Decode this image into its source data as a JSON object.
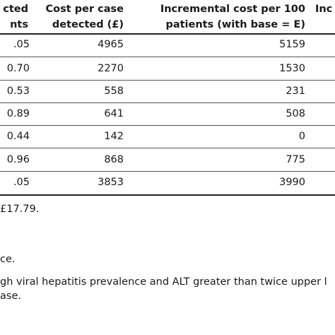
{
  "table": {
    "headers": {
      "col1_line1": "cted",
      "col1_line2": "nts",
      "col2_line1": "Cost per case",
      "col2_line2": "detected (£)",
      "col3_line1": "Incremental cost per 100",
      "col3_line2": "patients (with base = E)",
      "col4_line1": "Inc"
    },
    "rows": [
      {
        "c1": ".05",
        "c2": "4965",
        "c3": "5159"
      },
      {
        "c1": "0.70",
        "c2": "2270",
        "c3": "1530"
      },
      {
        "c1": "0.53",
        "c2": "558",
        "c3": "231"
      },
      {
        "c1": "0.89",
        "c2": "641",
        "c3": "508"
      },
      {
        "c1": "0.44",
        "c2": "142",
        "c3": "0"
      },
      {
        "c1": "0.96",
        "c2": "868",
        "c3": "775"
      },
      {
        "c1": ".05",
        "c2": "3853",
        "c3": "3990"
      }
    ]
  },
  "notes": {
    "note1": "£17.79.",
    "note2": "ce.",
    "note3": "gh viral hepatitis prevalence and ALT greater than twice upper l",
    "note4": "ase."
  }
}
